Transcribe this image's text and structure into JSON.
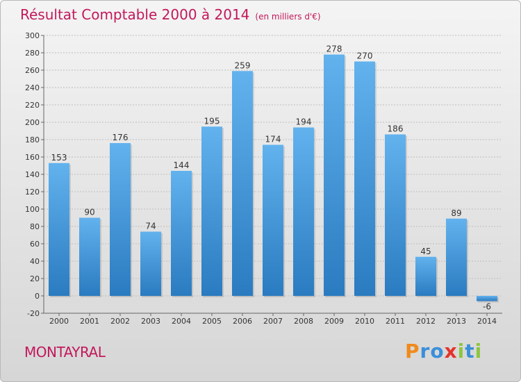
{
  "header": {
    "title": "Résultat Comptable 2000 à 2014",
    "unit": "(en milliers d'€)"
  },
  "commune": "MONTAYRAL",
  "logo": {
    "letters": [
      "P",
      "r",
      "o",
      "x",
      "i",
      "t",
      "i"
    ],
    "colors": [
      "#f08a1c",
      "#3a8fd9",
      "#3a8fd9",
      "#e5332a",
      "#8cc63f",
      "#3a8fd9",
      "#8cc63f"
    ]
  },
  "colors": {
    "accent": "#c2185b",
    "bar_top": "#62b2ee",
    "bar_bottom": "#2a7bc0"
  },
  "chart_data": {
    "type": "bar",
    "categories": [
      "2000",
      "2001",
      "2002",
      "2003",
      "2004",
      "2005",
      "2006",
      "2007",
      "2008",
      "2009",
      "2010",
      "2011",
      "2012",
      "2013",
      "2014"
    ],
    "values": [
      153,
      90,
      176,
      74,
      144,
      195,
      259,
      174,
      194,
      278,
      270,
      186,
      45,
      89,
      -6
    ],
    "ylim": [
      -20,
      300
    ],
    "yticks": [
      -20,
      0,
      20,
      40,
      60,
      80,
      100,
      120,
      140,
      160,
      180,
      200,
      220,
      240,
      260,
      280,
      300
    ],
    "grid": true
  }
}
